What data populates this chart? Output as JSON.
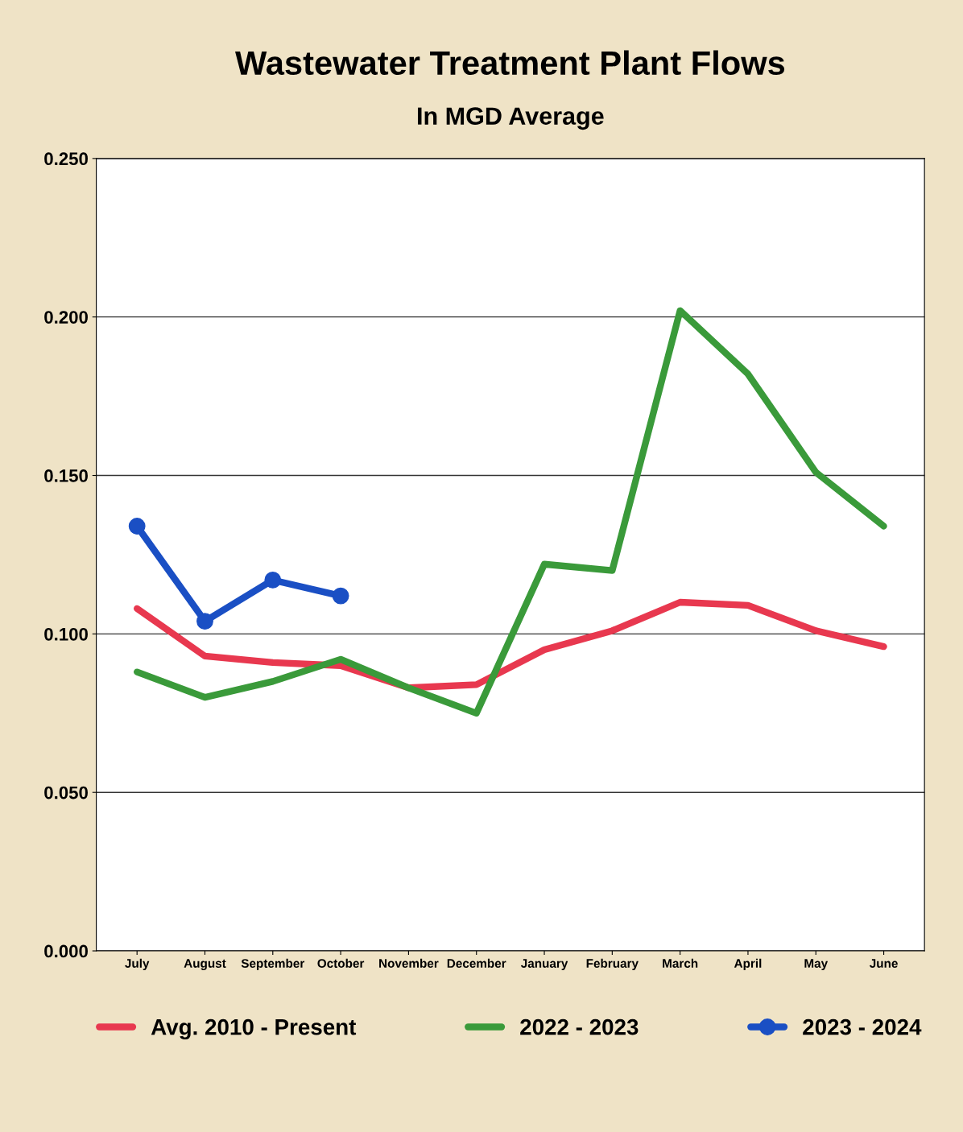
{
  "chart_data": {
    "type": "line",
    "title": "Wastewater Treatment Plant Flows",
    "subtitle": "In MGD Average",
    "categories": [
      "July",
      "August",
      "September",
      "October",
      "November",
      "December",
      "January",
      "February",
      "March",
      "April",
      "May",
      "June"
    ],
    "series": [
      {
        "name": "Avg. 2010 - Present",
        "color": "#e8384f",
        "marker": "none",
        "values": [
          0.108,
          0.093,
          0.091,
          0.09,
          0.083,
          0.084,
          0.095,
          0.101,
          0.11,
          0.109,
          0.101,
          0.096
        ]
      },
      {
        "name": "2022 - 2023",
        "color": "#3a9a3a",
        "marker": "none",
        "values": [
          0.088,
          0.08,
          0.085,
          0.092,
          0.083,
          0.075,
          0.122,
          0.12,
          0.202,
          0.182,
          0.151,
          0.134
        ]
      },
      {
        "name": "2023 - 2024",
        "color": "#1a4fc4",
        "marker": "circle",
        "values": [
          0.134,
          0.104,
          0.117,
          0.112,
          null,
          null,
          null,
          null,
          null,
          null,
          null,
          null
        ]
      }
    ],
    "ylim": [
      0,
      0.25
    ],
    "yticks": [
      {
        "value": 0,
        "label": "0.000"
      },
      {
        "value": 0.05,
        "label": "0.050"
      },
      {
        "value": 0.1,
        "label": "0.100"
      },
      {
        "value": 0.15,
        "label": "0.150"
      },
      {
        "value": 0.2,
        "label": "0.200"
      },
      {
        "value": 0.25,
        "label": "0.250"
      }
    ],
    "grid": "y",
    "legend": "bottom",
    "line_style": "solid"
  }
}
